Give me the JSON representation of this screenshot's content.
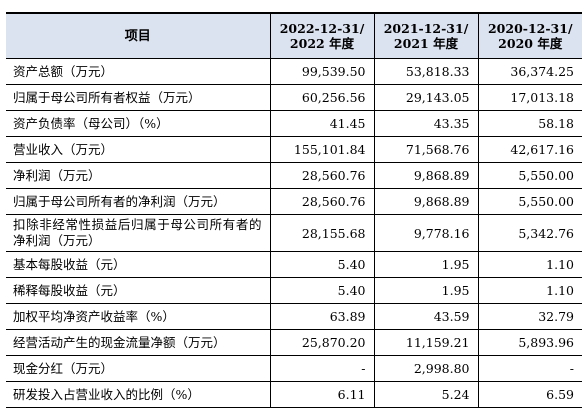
{
  "table": {
    "header": {
      "item": "项目",
      "years": [
        {
          "line1": "2022-12-31/",
          "line2": "2022 年度"
        },
        {
          "line1": "2021-12-31/",
          "line2": "2021 年度"
        },
        {
          "line1": "2020-12-31/",
          "line2": "2020 年度"
        }
      ]
    },
    "rows": [
      {
        "label": "资产总额（万元）",
        "values": [
          "99,539.50",
          "53,818.33",
          "36,374.25"
        ]
      },
      {
        "label": "归属于母公司所有者权益（万元）",
        "values": [
          "60,256.56",
          "29,143.05",
          "17,013.18"
        ]
      },
      {
        "label": "资产负债率（母公司）（%）",
        "values": [
          "41.45",
          "43.35",
          "58.18"
        ]
      },
      {
        "label": "营业收入（万元）",
        "values": [
          "155,101.84",
          "71,568.76",
          "42,617.16"
        ]
      },
      {
        "label": "净利润（万元）",
        "values": [
          "28,560.76",
          "9,868.89",
          "5,550.00"
        ]
      },
      {
        "label": "归属于母公司所有者的净利润（万元）",
        "values": [
          "28,560.76",
          "9,868.89",
          "5,550.00"
        ]
      },
      {
        "label": "扣除非经常性损益后归属于母公司所有者的净利润（万元）",
        "values": [
          "28,155.68",
          "9,778.16",
          "5,342.76"
        ]
      },
      {
        "label": "基本每股收益（元）",
        "values": [
          "5.40",
          "1.95",
          "1.10"
        ]
      },
      {
        "label": "稀释每股收益（元）",
        "values": [
          "5.40",
          "1.95",
          "1.10"
        ]
      },
      {
        "label": "加权平均净资产收益率（%）",
        "values": [
          "63.89",
          "43.59",
          "32.79"
        ]
      },
      {
        "label": "经营活动产生的现金流量净额（万元）",
        "values": [
          "25,870.20",
          "11,159.21",
          "5,893.96"
        ]
      },
      {
        "label": "现金分红（万元）",
        "values": [
          "-",
          "2,998.80",
          "-"
        ]
      },
      {
        "label": "研发投入占营业收入的比例（%）",
        "values": [
          "6.11",
          "5.24",
          "6.59"
        ]
      }
    ]
  },
  "colors": {
    "header_bg": "#dbe2f0",
    "border": "#000000",
    "text": "#000000"
  }
}
